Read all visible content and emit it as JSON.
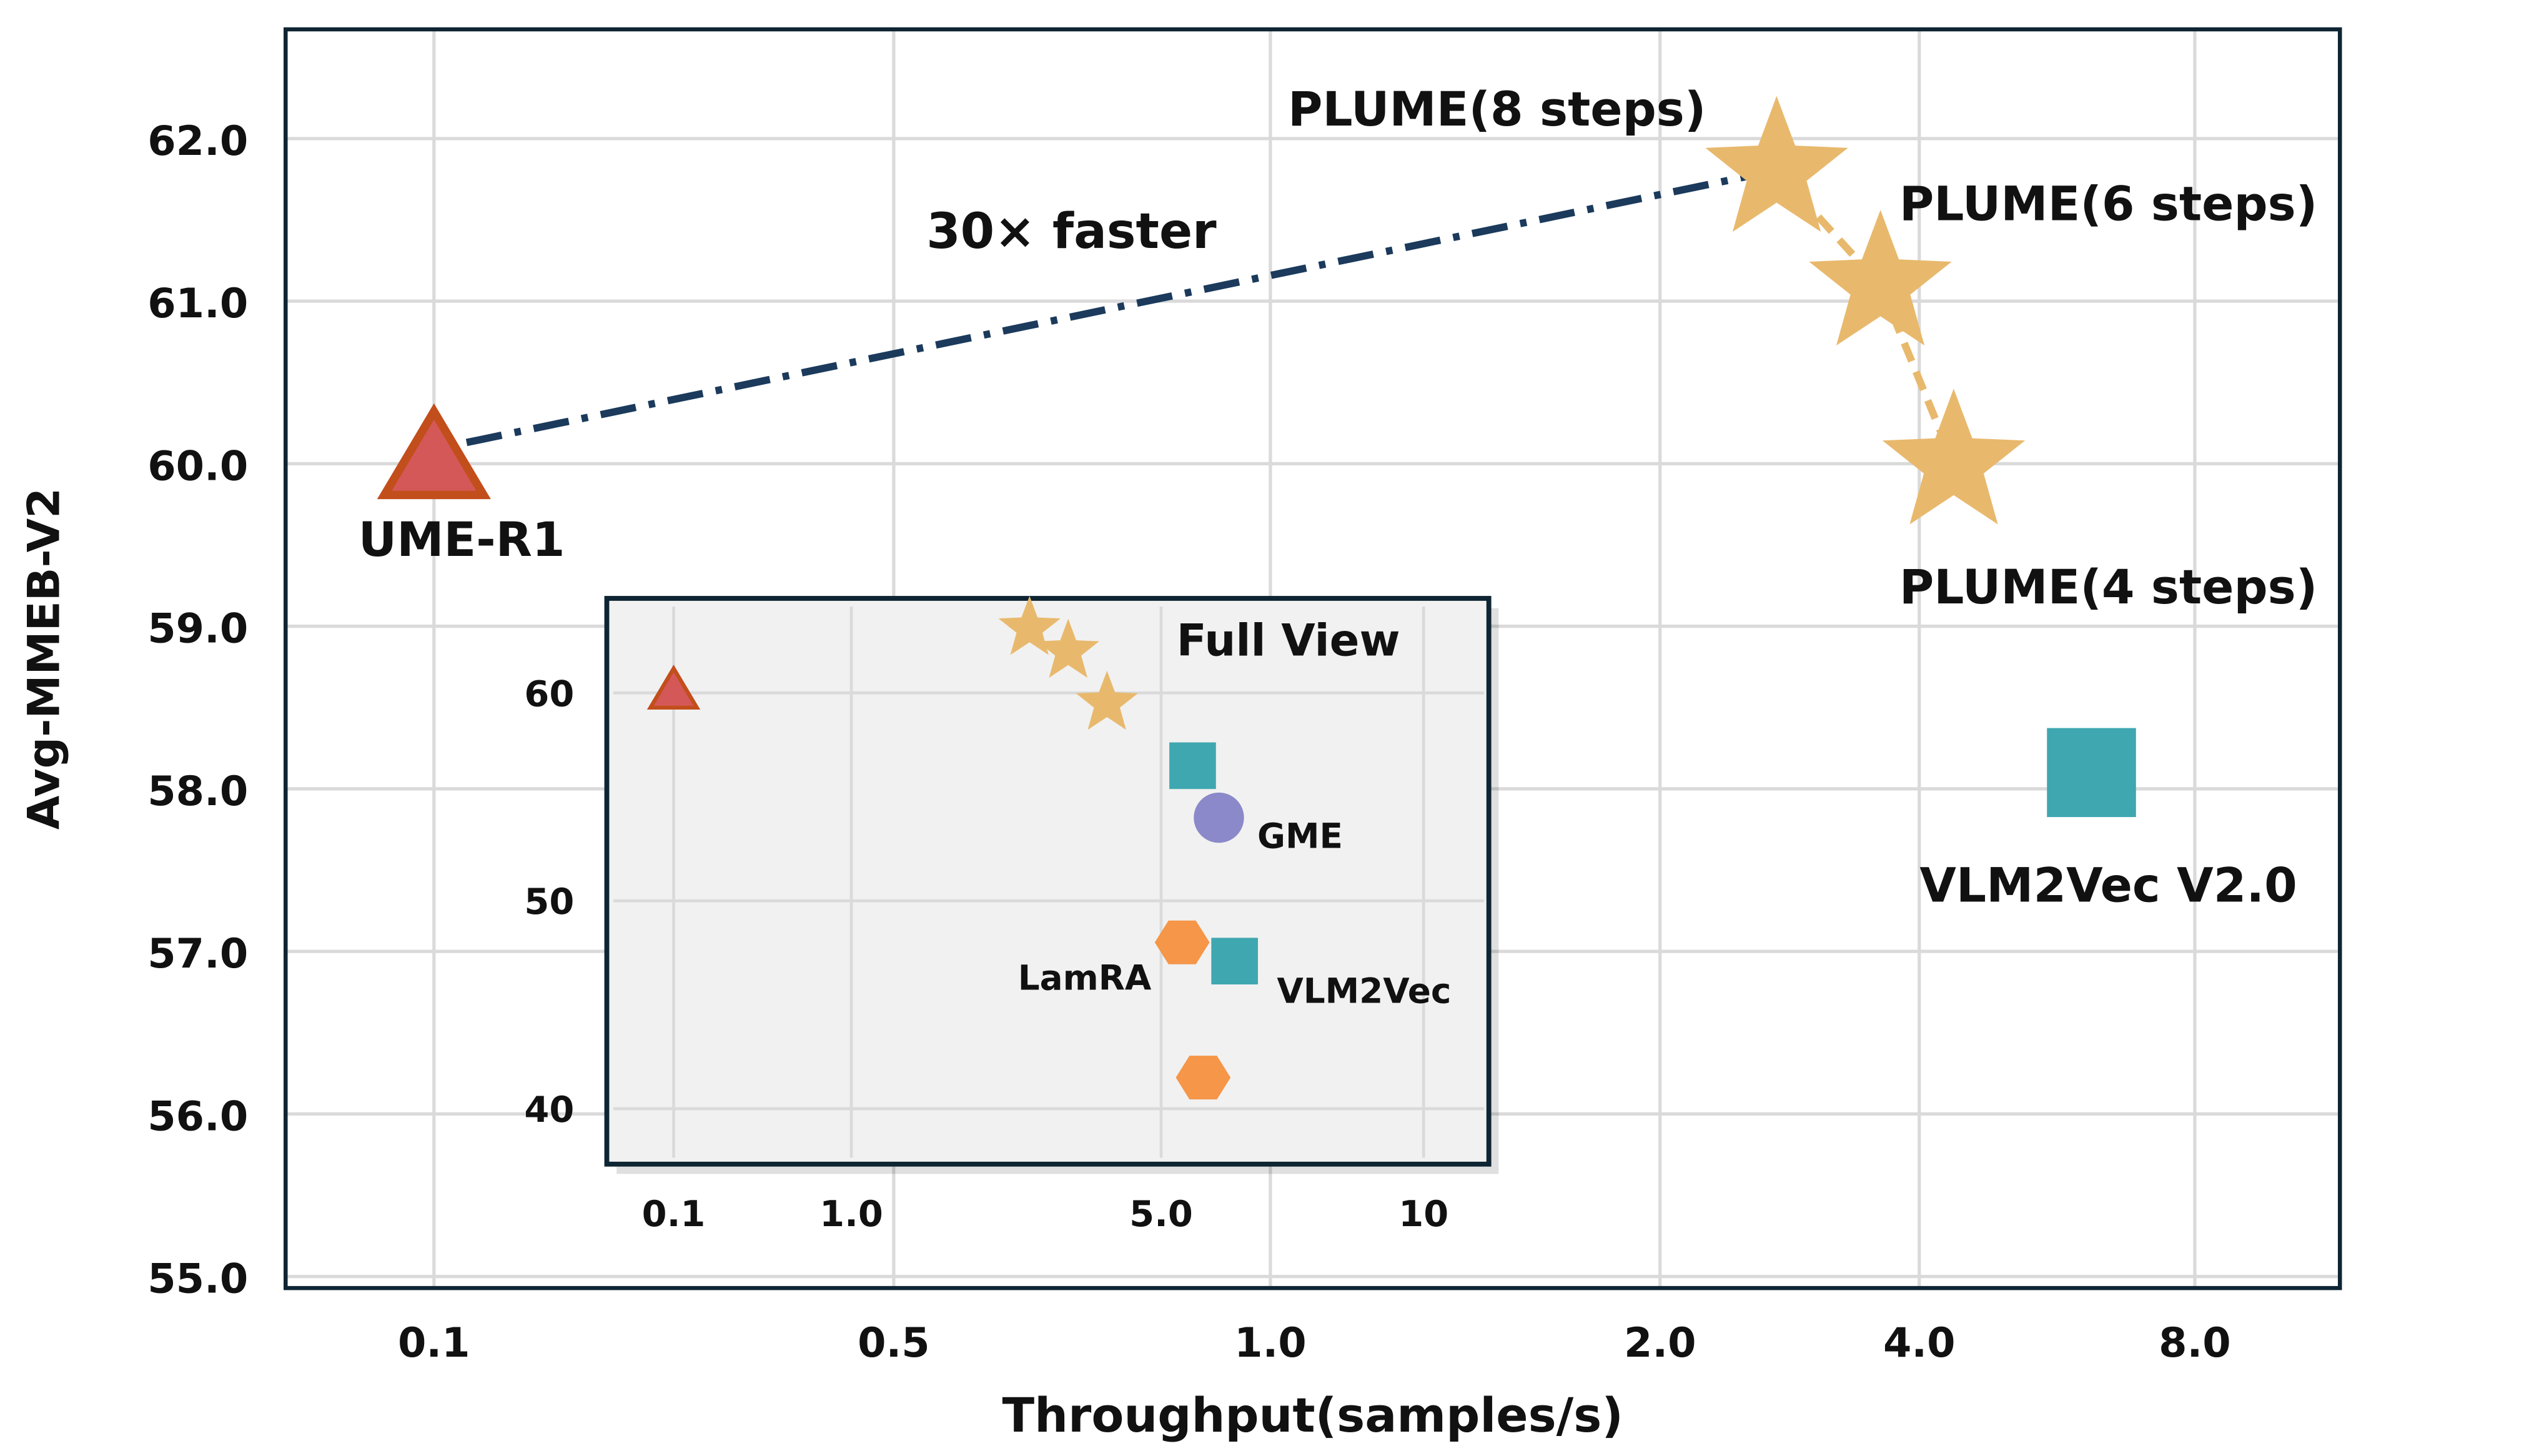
{
  "colors": {
    "plume": "#E8B96D",
    "ume_fill": "#D55858",
    "ume_stroke": "#C24E1C",
    "vlm2vec": "#3FA7B0",
    "gme": "#8B89C9",
    "lamra": "#F59648",
    "link_line": "#1B3A5C",
    "grid": "#DADADA",
    "frame": "#0E2533",
    "inset_bg": "#F1F1F1"
  },
  "chart_data": [
    {
      "type": "scatter",
      "xlabel": "Throughput(samples/s)",
      "ylabel": "Avg-MMEB-V2",
      "x_ticks": [
        "0.1",
        "0.5",
        "1.0",
        "2.0",
        "4.0",
        "8.0"
      ],
      "y_ticks": [
        "55.0",
        "56.0",
        "57.0",
        "58.0",
        "59.0",
        "60.0",
        "61.0",
        "62.0"
      ],
      "ylim": [
        55.0,
        62.6
      ],
      "grid": true,
      "annotation": "30× faster",
      "points": [
        {
          "label": "UME-R1",
          "x": 0.1,
          "y": 60.0,
          "marker": "triangle",
          "color_key": "ume_fill"
        },
        {
          "label": "PLUME(8 steps)",
          "x": 2.9,
          "y": 61.8,
          "marker": "star",
          "color_key": "plume"
        },
        {
          "label": "PLUME(6 steps)",
          "x": 3.7,
          "y": 61.1,
          "marker": "star",
          "color_key": "plume"
        },
        {
          "label": "PLUME(4 steps)",
          "x": 4.5,
          "y": 60.0,
          "marker": "star",
          "color_key": "plume"
        },
        {
          "label": "VLM2Vec V2.0",
          "x": 6.5,
          "y": 58.1,
          "marker": "square",
          "color_key": "vlm2vec"
        }
      ]
    },
    {
      "type": "scatter",
      "title": "Full View",
      "x_ticks": [
        "0.1",
        "1.0",
        "5.0",
        "10"
      ],
      "y_ticks": [
        "40",
        "50",
        "60"
      ],
      "grid": true,
      "points": [
        {
          "label": "",
          "x": 0.1,
          "y": 60.0,
          "marker": "triangle",
          "color_key": "ume_fill"
        },
        {
          "label": "",
          "x": 3.3,
          "y": 63.1,
          "marker": "star",
          "color_key": "plume"
        },
        {
          "label": "",
          "x": 3.8,
          "y": 62.0,
          "marker": "star",
          "color_key": "plume"
        },
        {
          "label": "",
          "x": 4.3,
          "y": 59.5,
          "marker": "star",
          "color_key": "plume"
        },
        {
          "label": "",
          "x": 5.6,
          "y": 56.5,
          "marker": "square",
          "color_key": "vlm2vec"
        },
        {
          "label": "GME",
          "x": 6.1,
          "y": 54.0,
          "marker": "circle",
          "color_key": "gme"
        },
        {
          "label": "LamRA",
          "x": 5.4,
          "y": 48.0,
          "marker": "hexagon",
          "color_key": "lamra"
        },
        {
          "label": "VLM2Vec",
          "x": 6.4,
          "y": 47.1,
          "marker": "square",
          "color_key": "vlm2vec"
        },
        {
          "label": "",
          "x": 5.8,
          "y": 41.5,
          "marker": "hexagon",
          "color_key": "lamra"
        }
      ]
    }
  ]
}
